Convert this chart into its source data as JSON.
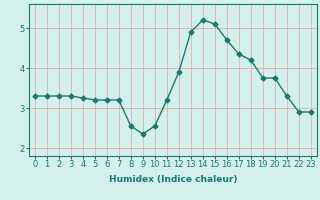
{
  "x": [
    0,
    1,
    2,
    3,
    4,
    5,
    6,
    7,
    8,
    9,
    10,
    11,
    12,
    13,
    14,
    15,
    16,
    17,
    18,
    19,
    20,
    21,
    22,
    23
  ],
  "y": [
    3.3,
    3.3,
    3.3,
    3.3,
    3.25,
    3.2,
    3.2,
    3.2,
    2.55,
    2.35,
    2.55,
    3.2,
    3.9,
    4.9,
    5.2,
    5.1,
    4.7,
    4.35,
    4.2,
    3.75,
    3.75,
    3.3,
    2.9,
    2.9
  ],
  "line_color": "#1a7a6e",
  "bg_color": "#d4f0ec",
  "grid_color": "#e8a0a0",
  "xlabel": "Humidex (Indice chaleur)",
  "ylim": [
    1.8,
    5.6
  ],
  "xlim": [
    -0.5,
    23.5
  ],
  "yticks": [
    2,
    3,
    4,
    5
  ],
  "xticks": [
    0,
    1,
    2,
    3,
    4,
    5,
    6,
    7,
    8,
    9,
    10,
    11,
    12,
    13,
    14,
    15,
    16,
    17,
    18,
    19,
    20,
    21,
    22,
    23
  ],
  "label_fontsize": 6.5,
  "tick_fontsize": 6.0,
  "marker": "D",
  "marker_size": 2.5,
  "line_width": 1.0
}
